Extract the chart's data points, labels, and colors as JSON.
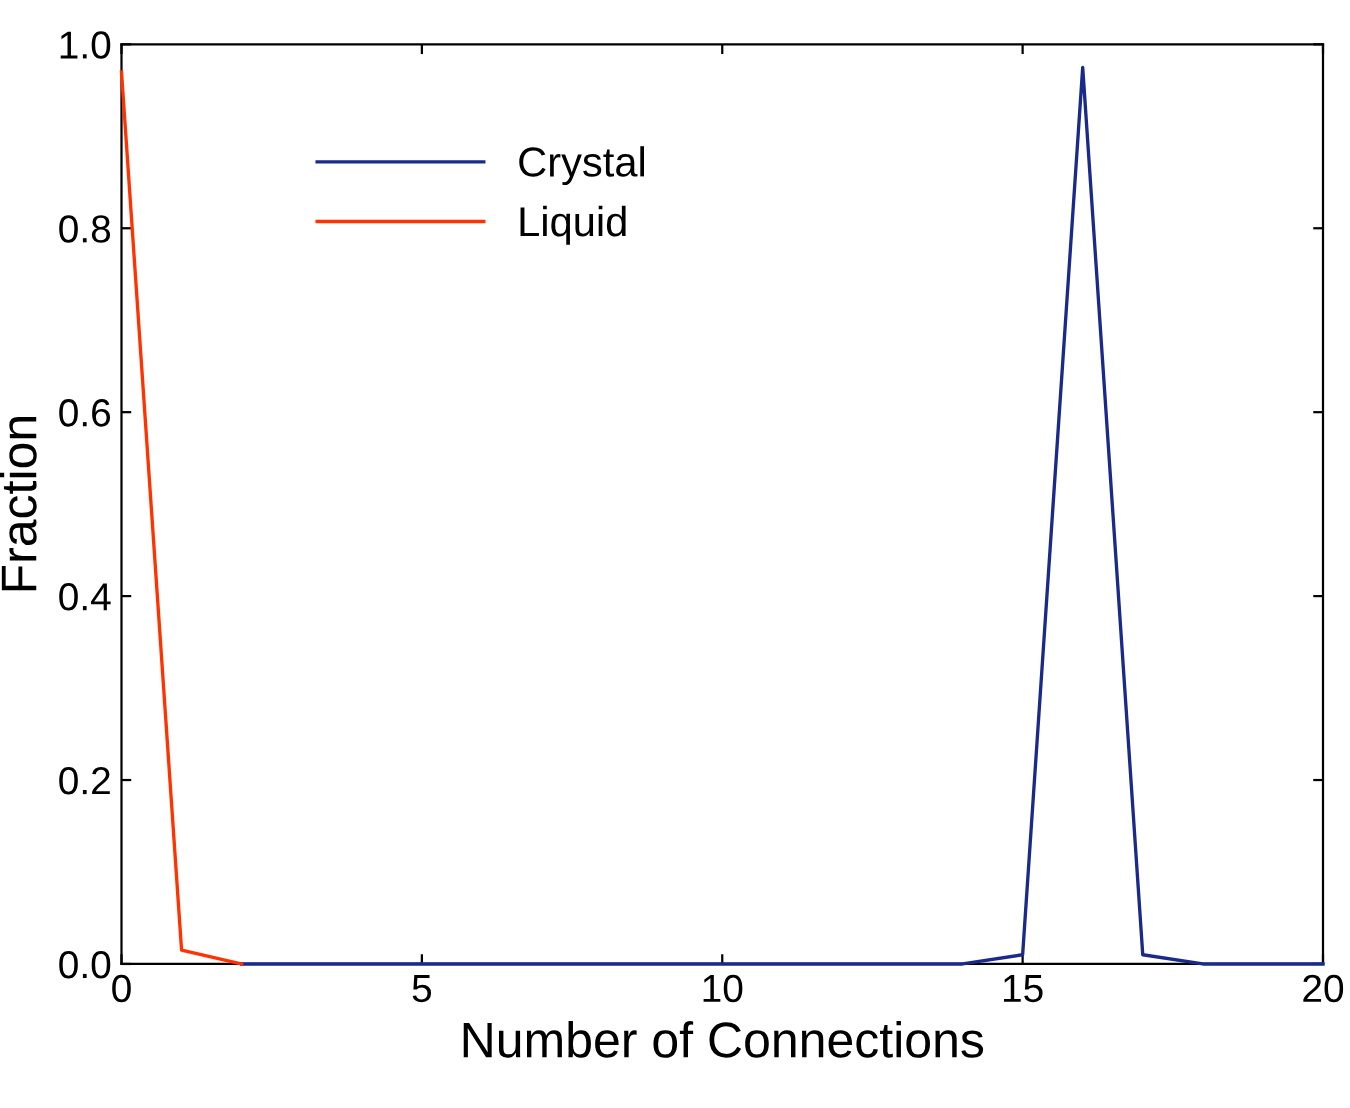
{
  "chart_data": {
    "type": "line",
    "xlabel": "Number of Connections",
    "ylabel": "Fraction",
    "x": [
      0,
      1,
      2,
      3,
      4,
      5,
      6,
      7,
      8,
      9,
      10,
      11,
      12,
      13,
      14,
      15,
      16,
      17,
      18,
      19,
      20
    ],
    "series": [
      {
        "name": "Crystal",
        "color": "#1a2a8a",
        "values": [
          null,
          null,
          0,
          0,
          0,
          0,
          0,
          0,
          0,
          0,
          0,
          0,
          0,
          0,
          0,
          0.01,
          0.975,
          0.01,
          0,
          0,
          0
        ]
      },
      {
        "name": "Liquid",
        "color": "#ff3300",
        "values": [
          0.97,
          0.015,
          0,
          null,
          null,
          null,
          null,
          null,
          null,
          null,
          null,
          null,
          null,
          null,
          null,
          null,
          null,
          null,
          null,
          null,
          null
        ]
      }
    ],
    "xlim": [
      0,
      20
    ],
    "xticks": [
      0,
      5,
      10,
      15,
      20
    ],
    "ylim": [
      0,
      1
    ],
    "yticks": [
      {
        "value": 0,
        "label": "0.0"
      },
      {
        "value": 0.2,
        "label": "0.2"
      },
      {
        "value": 0.4,
        "label": "0.4"
      },
      {
        "value": 0.6,
        "label": "0.6"
      },
      {
        "value": 0.8,
        "label": "0.8"
      },
      {
        "value": 1,
        "label": "1.0"
      }
    ],
    "legend": "top",
    "grid": false
  }
}
